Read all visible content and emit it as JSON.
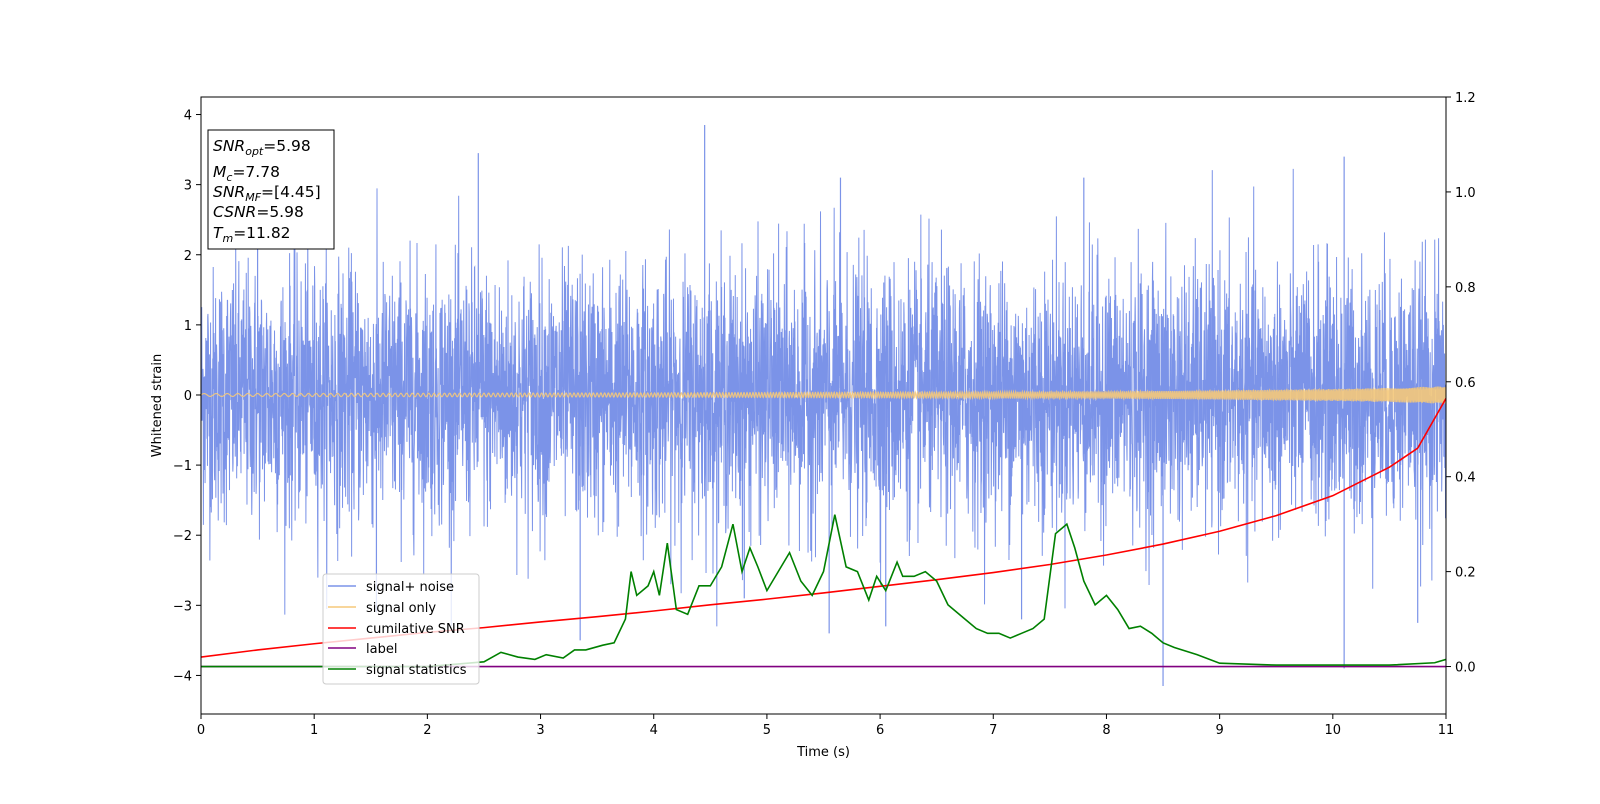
{
  "chart_data": {
    "type": "line",
    "xlabel": "Time (s)",
    "ylabel": "Whitened strain",
    "xlim": [
      0,
      11
    ],
    "ylim": [
      -4.55,
      4.25
    ],
    "y2lim": [
      -0.1,
      1.2
    ],
    "xticks": [
      "0",
      "1",
      "2",
      "3",
      "4",
      "5",
      "6",
      "7",
      "8",
      "9",
      "10",
      "11"
    ],
    "yticks": [
      "4",
      "3",
      "2",
      "1",
      "0",
      "−1",
      "−2",
      "−3",
      "−4"
    ],
    "y2ticks": [
      "1.2",
      "1.0",
      "0.8",
      "0.6",
      "0.4",
      "0.2",
      "0.0"
    ],
    "grid": false,
    "legend_position": "lower-left",
    "info_box": {
      "snr_opt_name": "SNR",
      "snr_opt_sub": "opt",
      "snr_opt_value": "=5.98",
      "mc_name": "M",
      "mc_sub": "c",
      "mc_value": "=7.78",
      "snr_mf_name": "SNR",
      "snr_mf_sub": "MF",
      "snr_mf_value": "=[4.45]",
      "csnr_name": "CSNR",
      "csnr_value": "=5.98",
      "tm_name": "T",
      "tm_sub": "m",
      "tm_value": "=11.82"
    },
    "series": [
      {
        "name": "signal+ noise",
        "color": "#7b93e8",
        "axis": "left",
        "kind": "noise",
        "std": 1.0,
        "spikes": [
          [
            0.5,
            2.5
          ],
          [
            1.55,
            -3.1
          ],
          [
            2.45,
            3.45
          ],
          [
            3.35,
            -3.5
          ],
          [
            4.45,
            3.85
          ],
          [
            4.8,
            -2.9
          ],
          [
            5.55,
            -3.4
          ],
          [
            5.65,
            3.1
          ],
          [
            6.05,
            -3.3
          ],
          [
            7.25,
            -3.2
          ],
          [
            7.8,
            3.1
          ],
          [
            8.5,
            -4.15
          ],
          [
            10.1,
            3.4
          ],
          [
            10.1,
            -3.9
          ],
          [
            10.75,
            -3.25
          ]
        ]
      },
      {
        "name": "signal only",
        "color": "#f5c97a",
        "axis": "left",
        "kind": "chirp",
        "x": [
          0,
          2,
          4,
          6,
          8,
          9,
          10,
          10.5,
          11
        ],
        "amplitude": [
          0.02,
          0.025,
          0.03,
          0.04,
          0.05,
          0.065,
          0.085,
          0.1,
          0.125
        ]
      },
      {
        "name": "cumilative SNR",
        "color": "#ff0000",
        "axis": "right",
        "x": [
          0,
          0.5,
          1,
          1.5,
          2,
          2.5,
          3,
          3.5,
          4,
          4.5,
          5,
          5.5,
          6,
          6.5,
          7,
          7.5,
          8,
          8.5,
          9,
          9.5,
          10,
          10.25,
          10.5,
          10.75,
          11
        ],
        "values": [
          0.02,
          0.035,
          0.048,
          0.06,
          0.072,
          0.082,
          0.094,
          0.105,
          0.117,
          0.13,
          0.142,
          0.155,
          0.169,
          0.183,
          0.198,
          0.215,
          0.235,
          0.258,
          0.285,
          0.318,
          0.36,
          0.39,
          0.42,
          0.46,
          0.565
        ]
      },
      {
        "name": "label",
        "color": "#800080",
        "axis": "right",
        "x": [
          0,
          11
        ],
        "values": [
          0.0,
          0.0
        ]
      },
      {
        "name": "signal statistics",
        "color": "#008000",
        "axis": "right",
        "x": [
          0,
          1,
          2,
          2.5,
          2.65,
          2.8,
          2.95,
          3.05,
          3.2,
          3.3,
          3.4,
          3.55,
          3.65,
          3.75,
          3.8,
          3.85,
          3.95,
          4.0,
          4.05,
          4.12,
          4.2,
          4.3,
          4.4,
          4.5,
          4.6,
          4.7,
          4.78,
          4.85,
          4.92,
          5.0,
          5.1,
          5.2,
          5.3,
          5.4,
          5.5,
          5.6,
          5.7,
          5.8,
          5.9,
          5.97,
          6.05,
          6.15,
          6.2,
          6.3,
          6.4,
          6.5,
          6.6,
          6.75,
          6.85,
          6.95,
          7.05,
          7.15,
          7.25,
          7.35,
          7.45,
          7.55,
          7.65,
          7.72,
          7.8,
          7.9,
          8.0,
          8.1,
          8.2,
          8.3,
          8.4,
          8.5,
          8.6,
          8.8,
          9.0,
          9.5,
          10.5,
          10.9,
          11
        ],
        "values": [
          0.0,
          0.0,
          0.0,
          0.01,
          0.03,
          0.02,
          0.015,
          0.025,
          0.018,
          0.035,
          0.035,
          0.045,
          0.05,
          0.1,
          0.2,
          0.15,
          0.17,
          0.2,
          0.15,
          0.26,
          0.12,
          0.11,
          0.17,
          0.17,
          0.21,
          0.3,
          0.2,
          0.25,
          0.21,
          0.16,
          0.2,
          0.24,
          0.18,
          0.15,
          0.2,
          0.32,
          0.21,
          0.2,
          0.14,
          0.19,
          0.16,
          0.22,
          0.19,
          0.19,
          0.2,
          0.18,
          0.13,
          0.1,
          0.08,
          0.07,
          0.07,
          0.06,
          0.07,
          0.08,
          0.1,
          0.28,
          0.3,
          0.25,
          0.18,
          0.13,
          0.15,
          0.12,
          0.08,
          0.085,
          0.07,
          0.05,
          0.04,
          0.025,
          0.007,
          0.003,
          0.003,
          0.008,
          0.015
        ]
      }
    ]
  }
}
